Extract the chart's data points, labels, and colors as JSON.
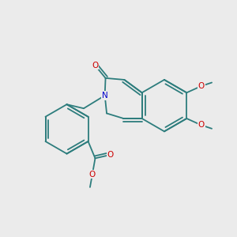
{
  "bg_color": "#ebebeb",
  "bond_color": "#2d7d7d",
  "N_color": "#0000cc",
  "O_color": "#cc0000",
  "font_size": 7.5,
  "bond_width": 1.3,
  "figsize": [
    3.0,
    3.0
  ],
  "dpi": 100,
  "xlim": [
    0,
    10
  ],
  "ylim": [
    0,
    10
  ]
}
